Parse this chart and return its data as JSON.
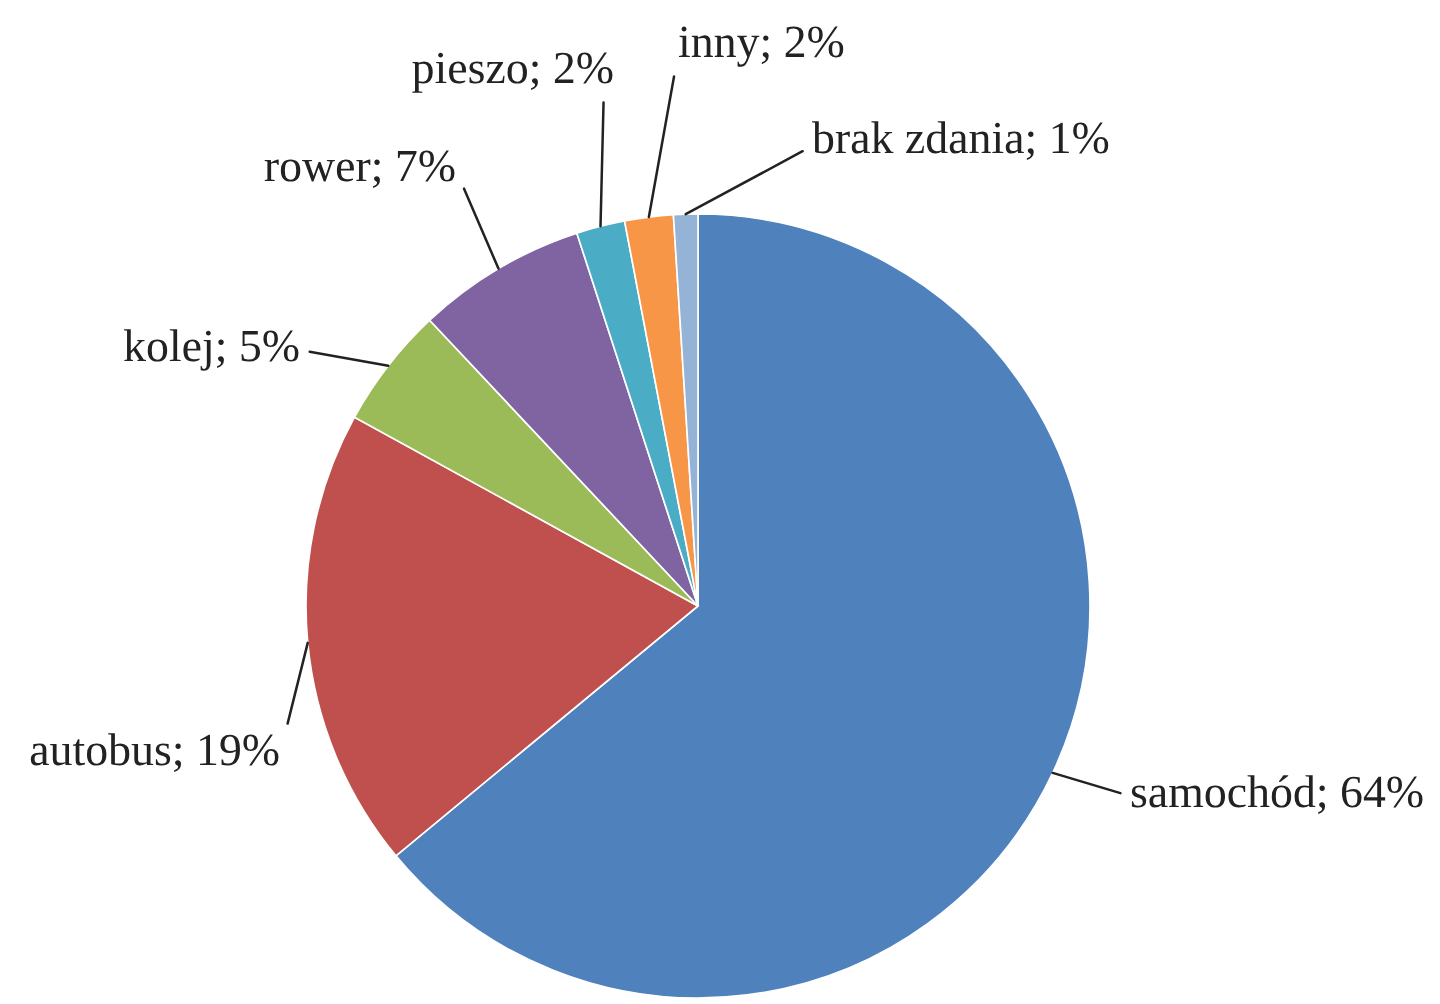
{
  "chart_data": {
    "type": "pie",
    "categories": [
      "samochód",
      "autobus",
      "kolej",
      "rower",
      "pieszo",
      "inny",
      "brak zdania"
    ],
    "values": [
      64,
      19,
      5,
      7,
      2,
      2,
      1
    ],
    "colors": [
      "#4f81bd",
      "#c0504d",
      "#9bbb59",
      "#8064a2",
      "#4bacc6",
      "#f79646",
      "#95b3d7"
    ],
    "value_labels": [
      "64%",
      "19%",
      "5%",
      "7%",
      "2%",
      "2%",
      "1%"
    ]
  }
}
